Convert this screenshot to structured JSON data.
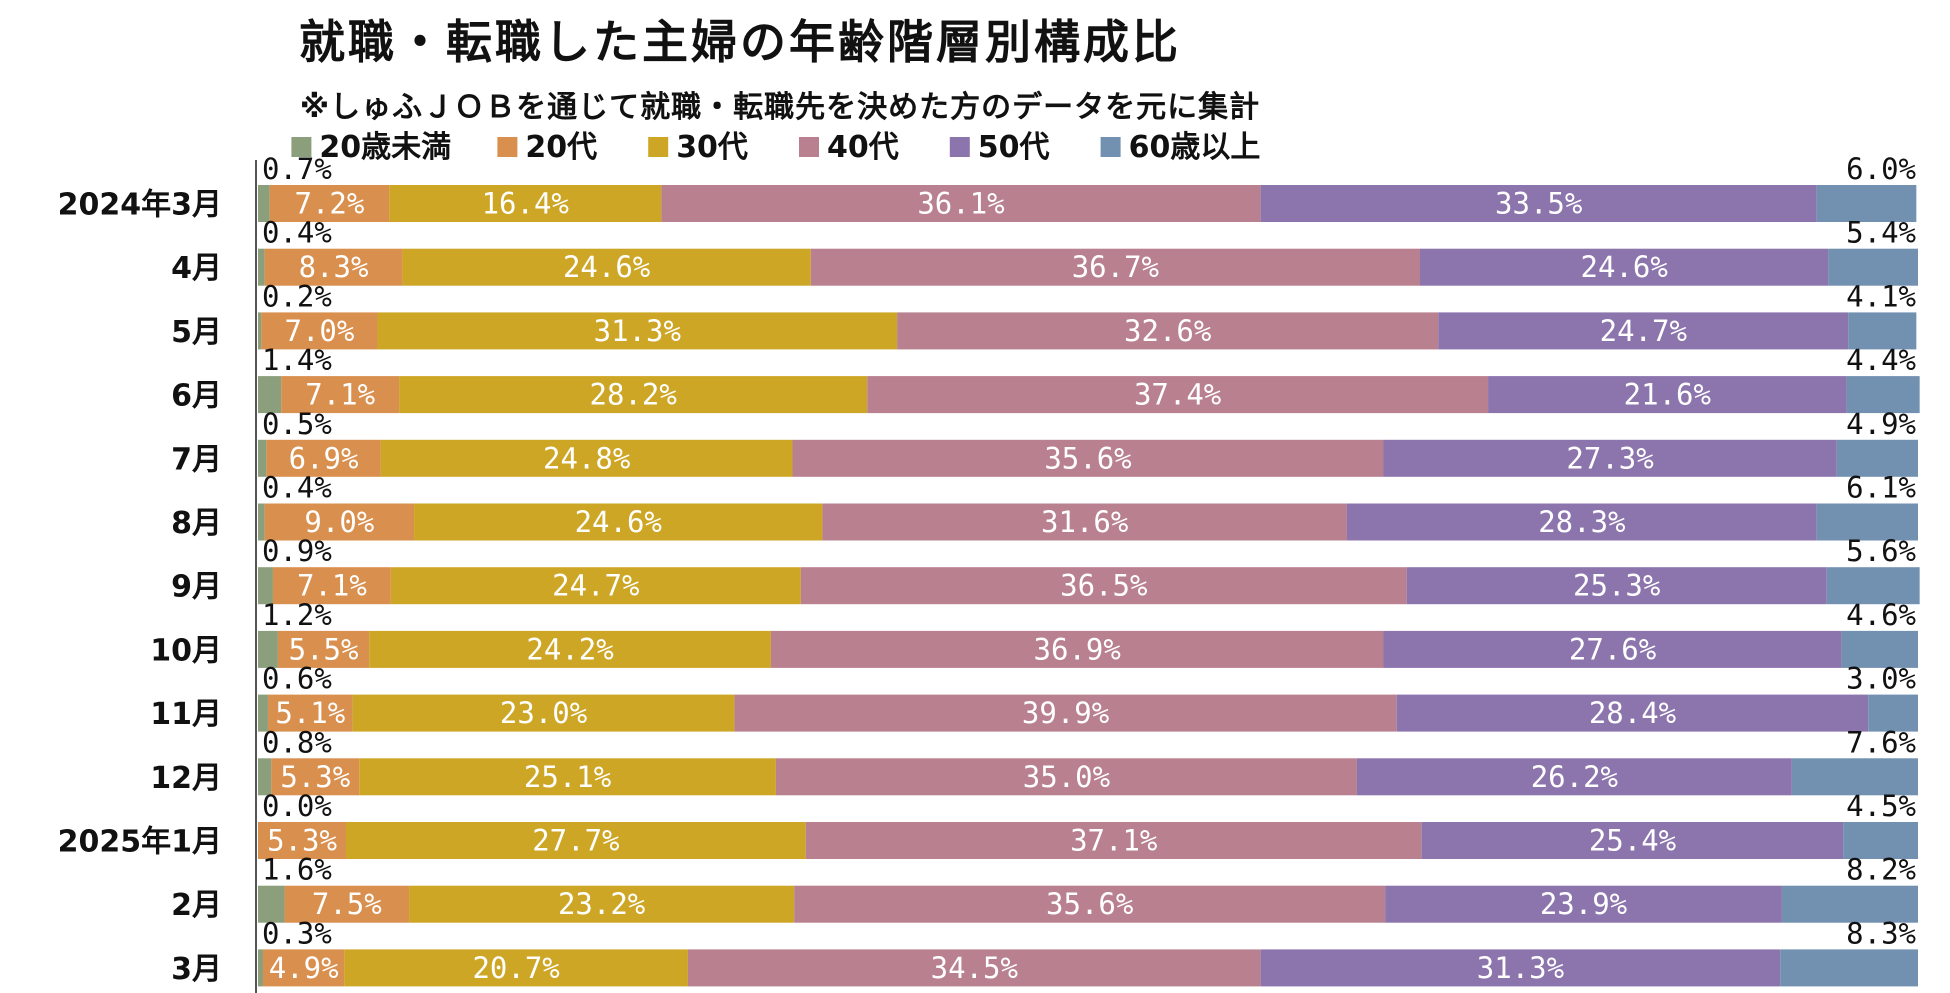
{
  "chart_data": {
    "type": "bar",
    "orientation": "horizontal",
    "stacked": true,
    "title": "就職・転職した主婦の年齢階層別構成比",
    "subtitle": "※しゅふＪＯＢを通じて就職・転職先を決めた方のデータを元に集計",
    "legend_position": "top",
    "xlim": [
      0,
      100
    ],
    "unit": "%",
    "categories": [
      "2024年3月",
      "4月",
      "5月",
      "6月",
      "7月",
      "8月",
      "9月",
      "10月",
      "11月",
      "12月",
      "2025年1月",
      "2月",
      "3月"
    ],
    "series": [
      {
        "name": "20歳未満",
        "color": "#8c9f7c",
        "labels_outside": true,
        "values": [
          0.7,
          0.4,
          0.2,
          1.4,
          0.5,
          0.4,
          0.9,
          1.2,
          0.6,
          0.8,
          0.0,
          1.6,
          0.3
        ]
      },
      {
        "name": "20代",
        "color": "#d98f4e",
        "values": [
          7.2,
          8.3,
          7.0,
          7.1,
          6.9,
          9.0,
          7.1,
          5.5,
          5.1,
          5.3,
          5.3,
          7.5,
          4.9
        ]
      },
      {
        "name": "30代",
        "color": "#cea626",
        "values": [
          16.4,
          24.6,
          31.3,
          28.2,
          24.8,
          24.6,
          24.7,
          24.2,
          23.0,
          25.1,
          27.7,
          23.2,
          20.7
        ]
      },
      {
        "name": "40代",
        "color": "#b98090",
        "values": [
          36.1,
          36.7,
          32.6,
          37.4,
          35.6,
          31.6,
          36.5,
          36.9,
          39.9,
          35.0,
          37.1,
          35.6,
          34.5
        ]
      },
      {
        "name": "50代",
        "color": "#8c74ad",
        "values": [
          33.5,
          24.6,
          24.7,
          21.6,
          27.3,
          28.3,
          25.3,
          27.6,
          28.4,
          26.2,
          25.4,
          23.9,
          31.3
        ]
      },
      {
        "name": "60歳以上",
        "color": "#7290b0",
        "labels_outside": true,
        "values": [
          6.0,
          5.4,
          4.1,
          4.4,
          4.9,
          6.1,
          5.6,
          4.6,
          3.0,
          7.6,
          4.5,
          8.2,
          8.3
        ]
      }
    ]
  }
}
